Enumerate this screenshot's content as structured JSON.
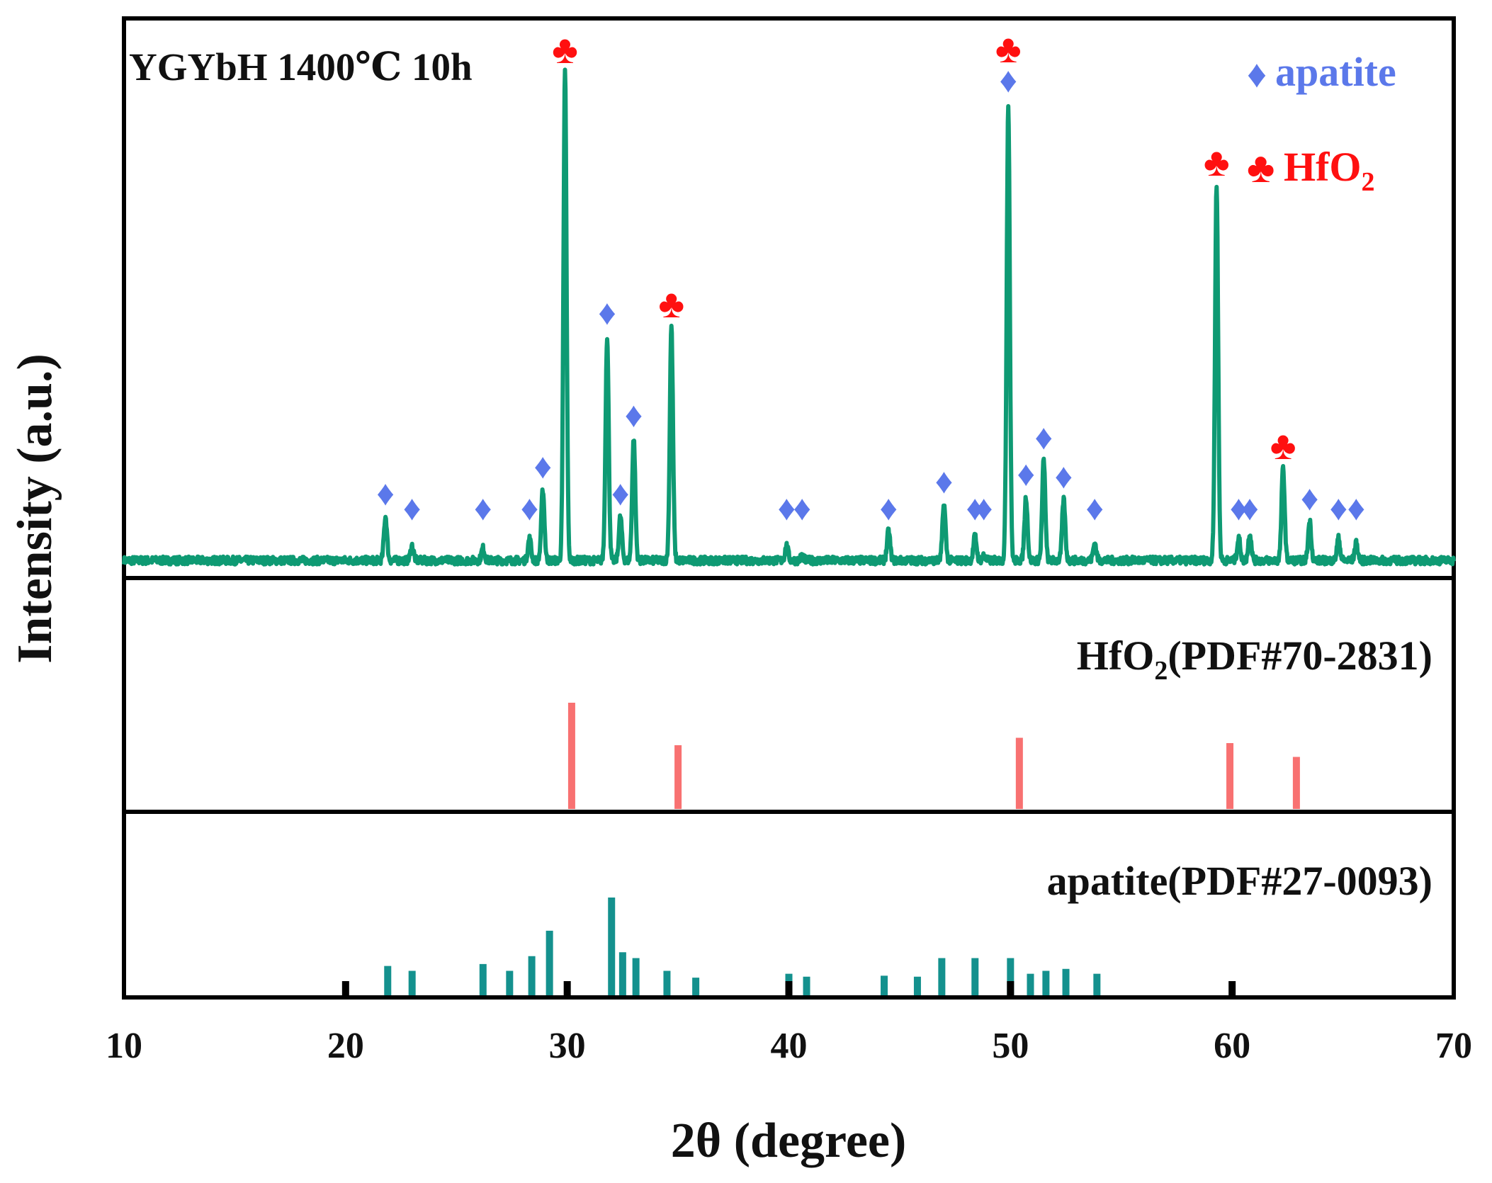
{
  "chart_data": {
    "type": "xrd-stacked",
    "xlabel": "2θ (degree)",
    "ylabel": "Intensity (a.u.)",
    "xlim": [
      10,
      70
    ],
    "xticks": [
      10,
      20,
      30,
      40,
      50,
      60,
      70
    ],
    "colors": {
      "pattern": "#0e9a73",
      "hfo2_ref": "#f87171",
      "apatite_ref": "#14918e",
      "apatite_marker": "#5b78ea",
      "hfo2_marker": "#ff1010",
      "frame": "#000000"
    },
    "panels": {
      "top": {
        "title": "YGYbH 1400℃ 10h",
        "legend": [
          {
            "symbol": "♦",
            "label": "apatite",
            "color_key": "apatite_marker"
          },
          {
            "symbol": "♣",
            "label": "HfO",
            "subscript": "2",
            "color_key": "hfo2_marker"
          }
        ],
        "baseline": 0.02,
        "peaks": [
          {
            "x": 21.8,
            "y": 0.09,
            "phase": "apatite"
          },
          {
            "x": 23.0,
            "y": 0.03,
            "phase": "apatite"
          },
          {
            "x": 26.2,
            "y": 0.025,
            "phase": "apatite"
          },
          {
            "x": 28.3,
            "y": 0.045,
            "phase": "apatite"
          },
          {
            "x": 28.9,
            "y": 0.145,
            "phase": "apatite"
          },
          {
            "x": 29.9,
            "y": 1.0,
            "phase": "HfO2"
          },
          {
            "x": 31.8,
            "y": 0.46,
            "phase": "apatite"
          },
          {
            "x": 32.4,
            "y": 0.09,
            "phase": "apatite"
          },
          {
            "x": 33.0,
            "y": 0.25,
            "phase": "apatite"
          },
          {
            "x": 34.7,
            "y": 0.48,
            "phase": "HfO2"
          },
          {
            "x": 39.9,
            "y": 0.03,
            "phase": "apatite"
          },
          {
            "x": 40.6,
            "y": 0.01,
            "phase": "apatite"
          },
          {
            "x": 44.5,
            "y": 0.06,
            "phase": "apatite"
          },
          {
            "x": 47.0,
            "y": 0.115,
            "phase": "apatite"
          },
          {
            "x": 48.4,
            "y": 0.05,
            "phase": "apatite"
          },
          {
            "x": 48.8,
            "y": 0.01,
            "phase": "apatite"
          },
          {
            "x": 49.9,
            "y": 0.935,
            "phase": "HfO2+apatite"
          },
          {
            "x": 50.7,
            "y": 0.13,
            "phase": "apatite"
          },
          {
            "x": 51.5,
            "y": 0.205,
            "phase": "apatite"
          },
          {
            "x": 52.4,
            "y": 0.125,
            "phase": "apatite"
          },
          {
            "x": 53.8,
            "y": 0.035,
            "phase": "apatite"
          },
          {
            "x": 59.3,
            "y": 0.77,
            "phase": "HfO2"
          },
          {
            "x": 60.3,
            "y": 0.045,
            "phase": "apatite"
          },
          {
            "x": 60.8,
            "y": 0.055,
            "phase": "apatite"
          },
          {
            "x": 62.3,
            "y": 0.19,
            "phase": "HfO2"
          },
          {
            "x": 63.5,
            "y": 0.08,
            "phase": "apatite"
          },
          {
            "x": 64.8,
            "y": 0.045,
            "phase": "apatite"
          },
          {
            "x": 65.6,
            "y": 0.035,
            "phase": "apatite"
          }
        ]
      },
      "hfo2_ref": {
        "label": "HfO",
        "label_sub": "2",
        "label_rest": "(PDF#70-2831)",
        "lines": [
          {
            "x": 30.2,
            "y": 1.0
          },
          {
            "x": 35.0,
            "y": 0.6
          },
          {
            "x": 50.4,
            "y": 0.67
          },
          {
            "x": 59.9,
            "y": 0.62
          },
          {
            "x": 62.9,
            "y": 0.49
          }
        ]
      },
      "apatite_ref": {
        "label": "apatite(PDF#27-0093)",
        "lines": [
          {
            "x": 21.9,
            "y": 0.3
          },
          {
            "x": 23.0,
            "y": 0.25
          },
          {
            "x": 26.2,
            "y": 0.32
          },
          {
            "x": 27.4,
            "y": 0.25
          },
          {
            "x": 28.4,
            "y": 0.4
          },
          {
            "x": 29.2,
            "y": 0.66
          },
          {
            "x": 32.0,
            "y": 1.0
          },
          {
            "x": 32.5,
            "y": 0.44
          },
          {
            "x": 33.1,
            "y": 0.38
          },
          {
            "x": 34.5,
            "y": 0.25
          },
          {
            "x": 35.8,
            "y": 0.18
          },
          {
            "x": 40.0,
            "y": 0.22
          },
          {
            "x": 40.8,
            "y": 0.19
          },
          {
            "x": 44.3,
            "y": 0.2
          },
          {
            "x": 45.8,
            "y": 0.19
          },
          {
            "x": 46.9,
            "y": 0.38
          },
          {
            "x": 48.4,
            "y": 0.38
          },
          {
            "x": 50.0,
            "y": 0.38
          },
          {
            "x": 50.9,
            "y": 0.22
          },
          {
            "x": 51.6,
            "y": 0.25
          },
          {
            "x": 52.5,
            "y": 0.27
          },
          {
            "x": 53.9,
            "y": 0.22
          }
        ]
      }
    }
  }
}
